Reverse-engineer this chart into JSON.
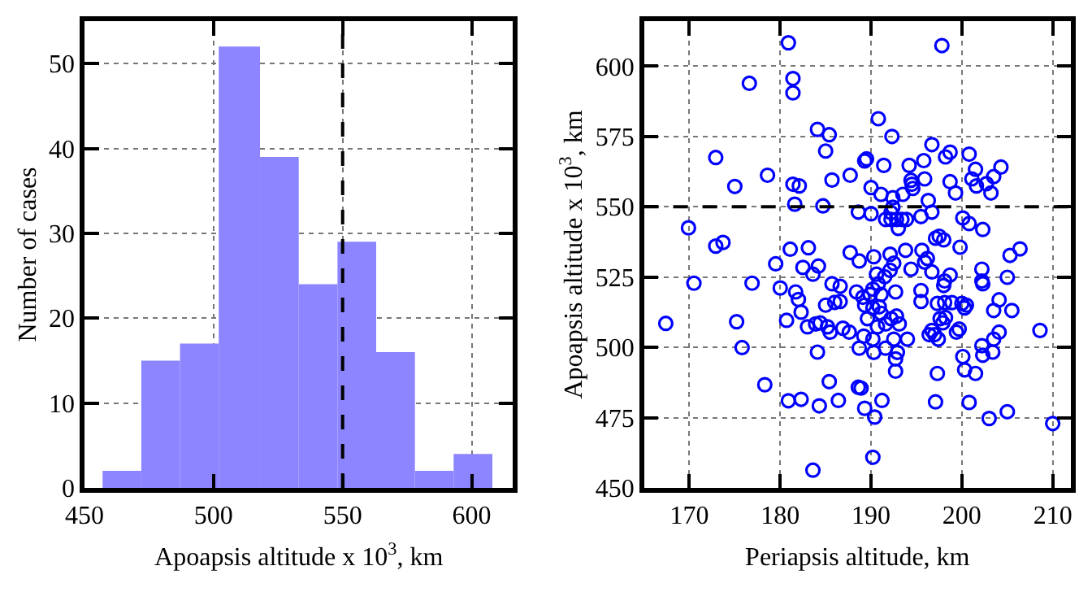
{
  "chart_data": [
    {
      "type": "histogram",
      "xlabel": "Apoapsis altitude x 10$^{3}$, km",
      "ylabel": "Number of cases",
      "bins": [
        457,
        472,
        487,
        502,
        518,
        533,
        548,
        563,
        578,
        593,
        608
      ],
      "values": [
        2,
        15,
        17,
        52,
        39,
        24,
        29,
        16,
        2,
        4
      ],
      "color": "#8c85ff",
      "xlim": [
        450,
        616
      ],
      "xticks": [
        450,
        500,
        550,
        600
      ],
      "ylim": [
        0,
        55
      ],
      "yticks": [
        0,
        10,
        20,
        30,
        40,
        50
      ],
      "ref_lines": [
        {
          "axis": "x",
          "value": 550,
          "color": "#000000",
          "line_style": "dashed"
        }
      ],
      "grid": true
    },
    {
      "type": "scatter",
      "xlabel": "Periapsis altitude, km",
      "ylabel": "Apoapsis altitude x 10$^{3}$, km",
      "marker": "circle",
      "color": "#0000ff",
      "x": [
        180.9,
        176.6,
        181.4,
        181.4,
        172.9,
        175.0,
        178.6,
        181.4,
        182.1,
        181.6,
        184.7,
        184.1,
        185.0,
        169.9,
        172.9,
        173.7,
        181.1,
        183.1,
        179.5,
        182.5,
        184.2,
        183.6,
        170.5,
        176.9,
        180.0,
        181.7,
        182.0,
        167.4,
        175.2,
        175.8,
        180.7,
        182.3,
        183.0,
        183.9,
        184.4,
        184.1,
        178.3,
        180.9,
        182.3,
        184.3,
        183.6,
        185.0,
        185.4,
        190.2,
        186.4,
        188.6,
        188.9,
        189.3,
        190.4,
        191.2,
        197.1,
        200.8,
        203.0,
        205.0,
        210.0,
        197.3,
        200.3,
        201.5,
        200.1,
        192.7,
        192.7,
        192.9,
        190.3,
        188.7,
        191.6,
        192.5,
        194.0,
        189.2,
        190.2,
        187.6,
        186.9,
        185.5,
        185.2,
        190.7,
        191.6,
        192.2,
        193.1,
        192.8,
        189.6,
        191.1,
        190.2,
        189.3,
        190.9,
        186.0,
        186.6,
        188.4,
        189.1,
        189.9,
        190.2,
        191.1,
        190.8,
        192.7,
        185.7,
        186.6,
        195.5,
        195.5,
        197.3,
        198.1,
        198.9,
        200.0,
        200.3,
        200.5,
        198.0,
        202.3,
        204.1,
        203.5,
        205.5,
        197.6,
        198.2,
        197.9,
        196.4,
        197.0,
        196.7,
        197.4,
        199.4,
        199.7,
        204.1,
        203.5,
        202.2,
        202.3,
        203.4,
        208.6,
        197.8,
        190.8,
        192.3,
        185.4,
        185.7,
        187.7,
        189.3,
        189.5,
        191.4,
        190.0,
        191.1,
        192.4,
        193.5,
        194.2,
        194.4,
        194.5,
        194.6,
        195.9,
        195.8,
        196.7,
        198.2,
        198.7,
        200.8,
        201.5,
        201.1,
        201.6,
        202.7,
        203.5,
        204.3,
        203.2,
        198.7,
        199.3,
        196.3,
        192.4,
        188.6,
        190.0,
        192.2,
        191.6,
        192.2,
        192.8,
        193.4,
        193.9,
        193.0,
        195.5,
        196.7,
        200.1,
        200.8,
        202.3,
        197.5,
        197.1,
        198.0,
        199.8,
        187.7,
        188.7,
        190.3,
        192.1,
        193.8,
        195.6,
        196.2,
        195.9,
        192.5,
        194.4,
        192.1,
        190.6,
        191.5,
        196.7,
        198.7,
        198.1,
        202.2,
        202.2,
        205.0,
        205.3,
        206.4
      ],
      "values": [
        608.3,
        593.9,
        595.6,
        590.5,
        567.5,
        557.2,
        561.2,
        558.0,
        557.4,
        550.9,
        550.3,
        577.5,
        569.8,
        542.5,
        536.0,
        537.3,
        534.9,
        535.4,
        529.7,
        528.4,
        528.9,
        526.0,
        522.8,
        522.8,
        521.1,
        519.7,
        517.0,
        508.5,
        509.1,
        499.9,
        509.6,
        512.5,
        507.3,
        508.3,
        508.7,
        498.3,
        486.7,
        481.0,
        481.5,
        479.2,
        456.3,
        515.0,
        487.8,
        460.9,
        481.1,
        485.8,
        485.5,
        478.3,
        475.2,
        481.1,
        480.6,
        480.4,
        474.7,
        477.1,
        472.9,
        490.7,
        492.0,
        490.7,
        496.7,
        491.5,
        495.9,
        498.2,
        498.2,
        499.7,
        499.7,
        502.9,
        502.9,
        504.0,
        502.9,
        505.4,
        506.8,
        505.4,
        507.3,
        507.3,
        508.3,
        510.2,
        508.3,
        511.1,
        510.2,
        512.1,
        514.0,
        515.0,
        514.4,
        516.0,
        516.3,
        519.7,
        517.8,
        518.8,
        520.7,
        518.8,
        522.6,
        519.7,
        522.6,
        521.7,
        520.2,
        516.3,
        515.6,
        515.9,
        515.9,
        515.6,
        514.0,
        515.0,
        522.0,
        522.6,
        516.9,
        513.1,
        513.1,
        510.2,
        510.6,
        508.7,
        504.5,
        504.5,
        506.0,
        502.9,
        505.4,
        506.5,
        505.4,
        502.9,
        500.6,
        497.2,
        498.3,
        506.0,
        607.3,
        581.3,
        575.0,
        575.6,
        559.5,
        561.2,
        566.3,
        567.0,
        564.7,
        556.8,
        554.4,
        553.2,
        554.4,
        564.7,
        559.4,
        558.0,
        556.5,
        559.9,
        566.4,
        572.1,
        567.7,
        569.4,
        568.7,
        563.3,
        559.9,
        557.4,
        558.2,
        560.7,
        564.1,
        554.9,
        558.9,
        554.9,
        552.2,
        549.8,
        548.1,
        547.5,
        547.9,
        545.5,
        545.5,
        545.5,
        545.5,
        545.5,
        542.3,
        546.5,
        548.1,
        546.0,
        544.0,
        541.9,
        539.5,
        538.8,
        538.2,
        535.6,
        533.7,
        530.7,
        532.2,
        533.1,
        534.5,
        534.5,
        531.6,
        530.3,
        529.9,
        527.8,
        527.4,
        526.0,
        525.1,
        526.8,
        525.7,
        523.6,
        527.8,
        523.6,
        524.9,
        532.7,
        535.0
      ],
      "xlim": [
        165,
        212
      ],
      "xticks": [
        170,
        180,
        190,
        200,
        210
      ],
      "ylim": [
        450,
        616
      ],
      "yticks": [
        450,
        475,
        500,
        525,
        550,
        575,
        600
      ],
      "ref_lines": [
        {
          "axis": "y",
          "value": 550,
          "color": "#000000",
          "line_style": "dashed"
        }
      ],
      "grid": true
    }
  ]
}
